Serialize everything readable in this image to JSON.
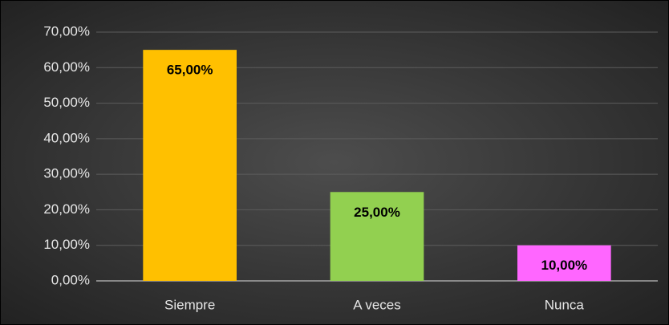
{
  "chart_data": {
    "type": "bar",
    "categories": [
      "Siempre",
      "A veces",
      "Nunca"
    ],
    "values": [
      65,
      25,
      10
    ],
    "value_labels": [
      "65,00%",
      "25,00%",
      "10,00%"
    ],
    "colors": [
      "#ffc000",
      "#92d050",
      "#ff66ff"
    ],
    "ylim": [
      0,
      70
    ],
    "yticks": [
      {
        "value": 0,
        "label": "0,00%"
      },
      {
        "value": 10,
        "label": "10,00%"
      },
      {
        "value": 20,
        "label": "20,00%"
      },
      {
        "value": 30,
        "label": "30,00%"
      },
      {
        "value": 40,
        "label": "40,00%"
      },
      {
        "value": 50,
        "label": "50,00%"
      },
      {
        "value": 60,
        "label": "60,00%"
      },
      {
        "value": 70,
        "label": "70,00%"
      }
    ],
    "grid": true
  }
}
